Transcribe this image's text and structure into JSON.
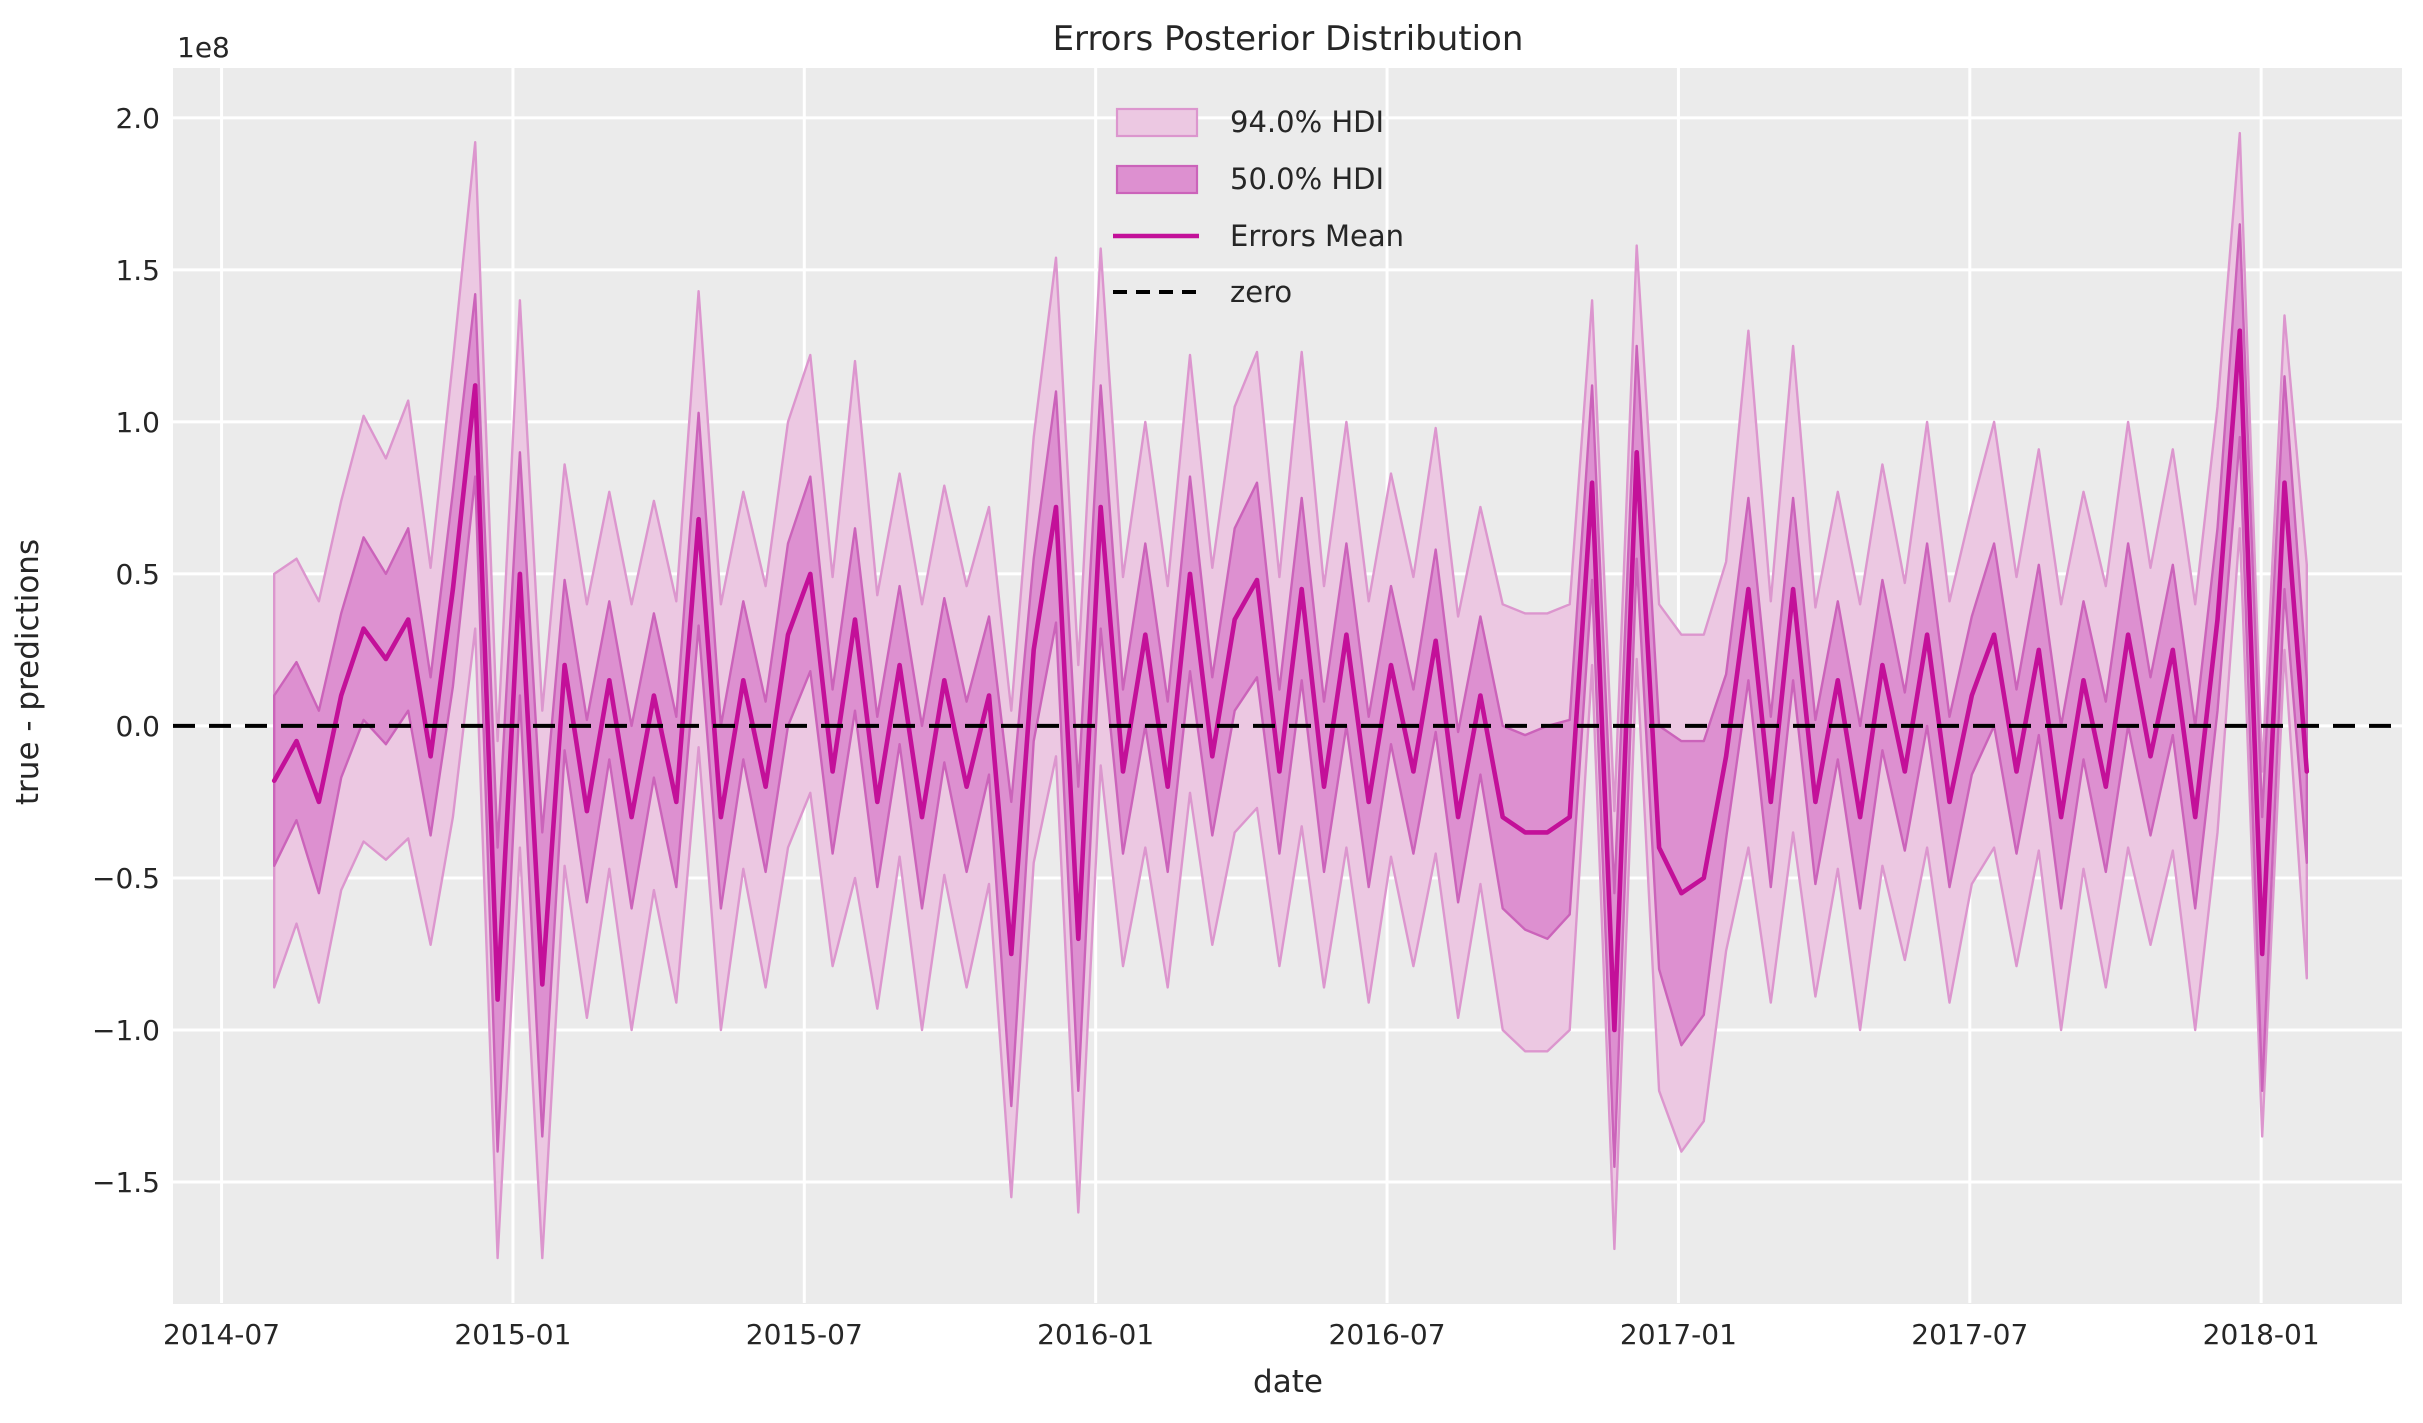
{
  "chart_data": {
    "type": "line",
    "subtype": "posterior-mean-with-hdi-bands",
    "title": "Errors Posterior Distribution",
    "xlabel": "date",
    "ylabel": "true - predictions",
    "y_offset_label": "1e8",
    "x_epoch": "2014-07-01",
    "x_start_date": "2014-08-03",
    "x_step_days": 14,
    "xticks": [
      "2014-07",
      "2015-01",
      "2015-07",
      "2016-01",
      "2016-07",
      "2017-01",
      "2017-07",
      "2018-01"
    ],
    "yticks": [
      2.0,
      1.5,
      1.0,
      0.5,
      0.0,
      -0.5,
      -1.0,
      -1.5
    ],
    "ylim": [
      -1.898,
      2.164
    ],
    "xlim_months": [
      -1.0,
      44.9
    ],
    "grid": true,
    "legend_position": "upper-center",
    "zero_reference": 0.0,
    "units": "1e8",
    "series": {
      "errors_mean": [
        -0.18,
        -0.05,
        -0.25,
        0.1,
        0.32,
        0.22,
        0.35,
        -0.1,
        0.45,
        1.12,
        -0.9,
        0.5,
        -0.85,
        0.2,
        -0.28,
        0.15,
        -0.3,
        0.1,
        -0.25,
        0.68,
        -0.3,
        0.15,
        -0.2,
        0.3,
        0.5,
        -0.15,
        0.35,
        -0.25,
        0.2,
        -0.3,
        0.15,
        -0.2,
        0.1,
        -0.75,
        0.25,
        0.72,
        -0.7,
        0.72,
        -0.15,
        0.3,
        -0.2,
        0.5,
        -0.1,
        0.35,
        0.48,
        -0.15,
        0.45,
        -0.2,
        0.3,
        -0.25,
        0.2,
        -0.15,
        0.28,
        -0.3,
        0.1,
        -0.3,
        -0.35,
        -0.35,
        -0.3,
        0.8,
        -1.0,
        0.9,
        -0.4,
        -0.55,
        -0.5,
        -0.1,
        0.45,
        -0.25,
        0.45,
        -0.25,
        0.15,
        -0.3,
        0.2,
        -0.15,
        0.3,
        -0.25,
        0.1,
        0.3,
        -0.15,
        0.25,
        -0.3,
        0.15,
        -0.2,
        0.3,
        -0.1,
        0.25,
        -0.3,
        0.35,
        1.3,
        -0.75,
        0.8,
        -0.15
      ],
      "hdi50_halfwidth": [
        0.28,
        0.26,
        0.3,
        0.27,
        0.3,
        0.28,
        0.3,
        0.26,
        0.32,
        0.3,
        0.5,
        0.4,
        0.5,
        0.28,
        0.3,
        0.26,
        0.3,
        0.27,
        0.28,
        0.35,
        0.3,
        0.26,
        0.28,
        0.3,
        0.32,
        0.27,
        0.3,
        0.28,
        0.26,
        0.3,
        0.27,
        0.28,
        0.26,
        0.5,
        0.3,
        0.38,
        0.5,
        0.4,
        0.27,
        0.3,
        0.28,
        0.32,
        0.26,
        0.3,
        0.32,
        0.27,
        0.3,
        0.28,
        0.3,
        0.28,
        0.26,
        0.27,
        0.3,
        0.28,
        0.26,
        0.3,
        0.32,
        0.35,
        0.32,
        0.32,
        0.45,
        0.35,
        0.4,
        0.5,
        0.45,
        0.27,
        0.3,
        0.28,
        0.3,
        0.27,
        0.26,
        0.3,
        0.28,
        0.26,
        0.3,
        0.28,
        0.26,
        0.3,
        0.27,
        0.28,
        0.3,
        0.26,
        0.28,
        0.3,
        0.26,
        0.28,
        0.3,
        0.3,
        0.35,
        0.45,
        0.35,
        0.3
      ],
      "hdi94_halfwidth": [
        0.68,
        0.6,
        0.66,
        0.64,
        0.7,
        0.66,
        0.72,
        0.62,
        0.75,
        0.8,
        0.85,
        0.9,
        0.9,
        0.66,
        0.68,
        0.62,
        0.7,
        0.64,
        0.66,
        0.75,
        0.7,
        0.62,
        0.66,
        0.7,
        0.72,
        0.64,
        0.85,
        0.68,
        0.63,
        0.7,
        0.64,
        0.66,
        0.62,
        0.8,
        0.7,
        0.82,
        0.9,
        0.85,
        0.64,
        0.7,
        0.66,
        0.72,
        0.62,
        0.7,
        0.75,
        0.64,
        0.78,
        0.66,
        0.7,
        0.66,
        0.63,
        0.64,
        0.7,
        0.66,
        0.62,
        0.7,
        0.72,
        0.72,
        0.7,
        0.6,
        0.72,
        0.68,
        0.8,
        0.85,
        0.8,
        0.64,
        0.85,
        0.66,
        0.8,
        0.64,
        0.62,
        0.7,
        0.66,
        0.62,
        0.7,
        0.66,
        0.62,
        0.7,
        0.64,
        0.66,
        0.7,
        0.62,
        0.66,
        0.7,
        0.62,
        0.66,
        0.7,
        0.7,
        0.65,
        0.6,
        0.55,
        0.68
      ]
    },
    "colors": {
      "plot_bg": "#ebebeb",
      "grid": "#ffffff",
      "hdi94_fill": "#ecc8e2",
      "hdi94_edge": "#dc96ce",
      "hdi50_fill": "#dd90d0",
      "hdi50_edge": "#cb63ba",
      "mean_line": "#c31099",
      "zero_line": "#000000",
      "text": "#262626"
    }
  },
  "legend": {
    "items": [
      {
        "label": "94.0% HDI",
        "type": "patch",
        "color": "#ecc8e2",
        "edge": "#dc96ce"
      },
      {
        "label": "50.0% HDI",
        "type": "patch",
        "color": "#dd90d0",
        "edge": "#cb63ba"
      },
      {
        "label": "Errors Mean",
        "type": "line",
        "color": "#c31099"
      },
      {
        "label": "zero",
        "type": "dashed-line",
        "color": "#000000"
      }
    ]
  }
}
